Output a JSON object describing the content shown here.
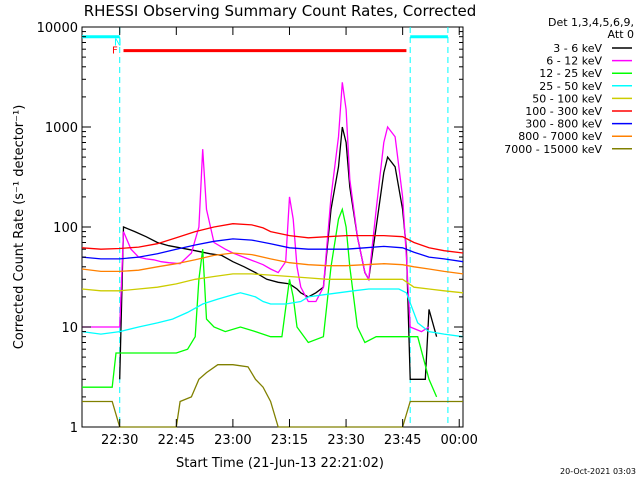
{
  "chart_data": {
    "type": "line",
    "title": "RHESSI Observing Summary Count Rates, Corrected",
    "xlabel": "Start Time (21-Jun-13 22:21:02)",
    "ylabel": "Corrected Count Rate (s⁻¹ detector⁻¹)",
    "yscale": "log",
    "ylim": [
      1,
      10000
    ],
    "xlim_minutes_after_22_00": [
      20,
      121
    ],
    "x_ticks": [
      {
        "label": "22:30",
        "minute": 30
      },
      {
        "label": "22:45",
        "minute": 45
      },
      {
        "label": "23:00",
        "minute": 60
      },
      {
        "label": "23:15",
        "minute": 75
      },
      {
        "label": "23:30",
        "minute": 90
      },
      {
        "label": "23:45",
        "minute": 105
      },
      {
        "label": "00:00",
        "minute": 120
      }
    ],
    "y_ticks": [
      {
        "label": "1",
        "value": 1
      },
      {
        "label": "10",
        "value": 10
      },
      {
        "label": "100",
        "value": 100
      },
      {
        "label": "1000",
        "value": 1000
      },
      {
        "label": "10000",
        "value": 10000
      }
    ],
    "legend_header": [
      "Det 1,3,4,5,6,9,",
      "Att 0"
    ],
    "legend_position": "right",
    "series": [
      {
        "name": "3 - 6 keV",
        "color": "#000000",
        "points": [
          [
            30,
            3
          ],
          [
            31,
            100
          ],
          [
            34,
            90
          ],
          [
            37,
            80
          ],
          [
            40,
            70
          ],
          [
            43,
            65
          ],
          [
            46,
            62
          ],
          [
            50,
            58
          ],
          [
            54,
            54
          ],
          [
            57,
            52
          ],
          [
            60,
            45
          ],
          [
            63,
            40
          ],
          [
            66,
            35
          ],
          [
            69,
            30
          ],
          [
            72,
            28
          ],
          [
            75,
            27
          ],
          [
            77,
            24
          ],
          [
            78,
            22
          ],
          [
            80,
            20
          ],
          [
            82,
            22
          ],
          [
            84,
            25
          ],
          [
            86,
            150
          ],
          [
            88,
            400
          ],
          [
            89,
            1000
          ],
          [
            90,
            700
          ],
          [
            91,
            250
          ],
          [
            93,
            80
          ],
          [
            95,
            35
          ],
          [
            96,
            30
          ],
          [
            98,
            100
          ],
          [
            100,
            350
          ],
          [
            101,
            500
          ],
          [
            103,
            400
          ],
          [
            105,
            150
          ],
          [
            106,
            60
          ],
          [
            107,
            3
          ],
          [
            111,
            3
          ],
          [
            112,
            15
          ],
          [
            114,
            8
          ]
        ]
      },
      {
        "name": "6 - 12 keV",
        "color": "#ff00ff",
        "points": [
          [
            20,
            10
          ],
          [
            27,
            10
          ],
          [
            30,
            10
          ],
          [
            31,
            90
          ],
          [
            33,
            60
          ],
          [
            35,
            50
          ],
          [
            37,
            48
          ],
          [
            39,
            47
          ],
          [
            41,
            45
          ],
          [
            43,
            44
          ],
          [
            46,
            43
          ],
          [
            49,
            55
          ],
          [
            51,
            100
          ],
          [
            52,
            600
          ],
          [
            53,
            150
          ],
          [
            55,
            70
          ],
          [
            58,
            60
          ],
          [
            60,
            55
          ],
          [
            64,
            48
          ],
          [
            66,
            45
          ],
          [
            68,
            42
          ],
          [
            70,
            38
          ],
          [
            72,
            35
          ],
          [
            74,
            45
          ],
          [
            75,
            200
          ],
          [
            76,
            120
          ],
          [
            77,
            40
          ],
          [
            78,
            25
          ],
          [
            80,
            18
          ],
          [
            82,
            18
          ],
          [
            84,
            25
          ],
          [
            86,
            200
          ],
          [
            88,
            800
          ],
          [
            89,
            2800
          ],
          [
            90,
            1500
          ],
          [
            91,
            300
          ],
          [
            93,
            80
          ],
          [
            95,
            35
          ],
          [
            96,
            30
          ],
          [
            98,
            150
          ],
          [
            100,
            700
          ],
          [
            101,
            1000
          ],
          [
            103,
            800
          ],
          [
            105,
            200
          ],
          [
            106,
            50
          ],
          [
            107,
            10
          ],
          [
            110,
            9
          ],
          [
            112,
            10
          ]
        ]
      },
      {
        "name": "12 - 25 keV",
        "color": "#00ff00",
        "points": [
          [
            20,
            2.5
          ],
          [
            28,
            2.5
          ],
          [
            29,
            5.5
          ],
          [
            35,
            5.5
          ],
          [
            40,
            5.5
          ],
          [
            45,
            5.5
          ],
          [
            48,
            6
          ],
          [
            50,
            8
          ],
          [
            51,
            30
          ],
          [
            52,
            60
          ],
          [
            53,
            12
          ],
          [
            55,
            10
          ],
          [
            58,
            9
          ],
          [
            62,
            10
          ],
          [
            66,
            9
          ],
          [
            70,
            8
          ],
          [
            73,
            8
          ],
          [
            75,
            30
          ],
          [
            76,
            20
          ],
          [
            77,
            10
          ],
          [
            80,
            7
          ],
          [
            84,
            8
          ],
          [
            86,
            40
          ],
          [
            88,
            120
          ],
          [
            89,
            150
          ],
          [
            90,
            100
          ],
          [
            91,
            40
          ],
          [
            93,
            10
          ],
          [
            95,
            7
          ],
          [
            98,
            8
          ],
          [
            102,
            8
          ],
          [
            105,
            8
          ],
          [
            107,
            8
          ],
          [
            109,
            8
          ],
          [
            112,
            3
          ],
          [
            114,
            2
          ]
        ]
      },
      {
        "name": "25 - 50 keV",
        "color": "#00ffff",
        "points": [
          [
            20,
            9
          ],
          [
            25,
            8.5
          ],
          [
            30,
            9
          ],
          [
            35,
            10
          ],
          [
            40,
            11
          ],
          [
            44,
            12
          ],
          [
            48,
            14
          ],
          [
            52,
            17
          ],
          [
            56,
            19
          ],
          [
            60,
            21
          ],
          [
            62,
            22
          ],
          [
            64,
            21
          ],
          [
            66,
            20
          ],
          [
            68,
            18
          ],
          [
            70,
            17
          ],
          [
            74,
            17
          ],
          [
            78,
            18
          ],
          [
            80,
            20
          ],
          [
            84,
            21
          ],
          [
            88,
            22
          ],
          [
            92,
            23
          ],
          [
            96,
            24
          ],
          [
            100,
            24
          ],
          [
            104,
            24
          ],
          [
            106,
            22
          ],
          [
            109,
            11
          ],
          [
            112,
            9
          ],
          [
            116,
            8.5
          ],
          [
            121,
            8
          ]
        ]
      },
      {
        "name": "50 - 100 keV",
        "color": "#cccc00",
        "points": [
          [
            20,
            24
          ],
          [
            25,
            23
          ],
          [
            30,
            23
          ],
          [
            35,
            24
          ],
          [
            40,
            25
          ],
          [
            45,
            27
          ],
          [
            50,
            30
          ],
          [
            55,
            32
          ],
          [
            60,
            34
          ],
          [
            65,
            34
          ],
          [
            70,
            33
          ],
          [
            75,
            32
          ],
          [
            80,
            31
          ],
          [
            85,
            30
          ],
          [
            90,
            30
          ],
          [
            95,
            30
          ],
          [
            100,
            30
          ],
          [
            105,
            30
          ],
          [
            108,
            25
          ],
          [
            112,
            24
          ],
          [
            116,
            23
          ],
          [
            121,
            22
          ]
        ]
      },
      {
        "name": "100 - 300 keV",
        "color": "#ff0000",
        "points": [
          [
            20,
            62
          ],
          [
            25,
            60
          ],
          [
            30,
            61
          ],
          [
            35,
            63
          ],
          [
            40,
            68
          ],
          [
            45,
            78
          ],
          [
            50,
            90
          ],
          [
            55,
            100
          ],
          [
            60,
            108
          ],
          [
            65,
            105
          ],
          [
            68,
            98
          ],
          [
            70,
            90
          ],
          [
            75,
            82
          ],
          [
            80,
            78
          ],
          [
            85,
            80
          ],
          [
            90,
            82
          ],
          [
            95,
            82
          ],
          [
            100,
            82
          ],
          [
            105,
            80
          ],
          [
            108,
            70
          ],
          [
            112,
            62
          ],
          [
            116,
            58
          ],
          [
            121,
            55
          ]
        ]
      },
      {
        "name": "300 - 800 keV",
        "color": "#0000ff",
        "points": [
          [
            20,
            50
          ],
          [
            25,
            48
          ],
          [
            30,
            48
          ],
          [
            35,
            50
          ],
          [
            40,
            54
          ],
          [
            45,
            60
          ],
          [
            50,
            66
          ],
          [
            55,
            72
          ],
          [
            60,
            76
          ],
          [
            65,
            74
          ],
          [
            70,
            68
          ],
          [
            75,
            62
          ],
          [
            80,
            60
          ],
          [
            85,
            60
          ],
          [
            90,
            60
          ],
          [
            95,
            62
          ],
          [
            100,
            64
          ],
          [
            105,
            62
          ],
          [
            108,
            56
          ],
          [
            112,
            50
          ],
          [
            116,
            48
          ],
          [
            121,
            45
          ]
        ]
      },
      {
        "name": "800 - 7000 keV",
        "color": "#ff8000",
        "points": [
          [
            20,
            38
          ],
          [
            25,
            36
          ],
          [
            30,
            36
          ],
          [
            35,
            37
          ],
          [
            40,
            40
          ],
          [
            45,
            43
          ],
          [
            50,
            47
          ],
          [
            55,
            52
          ],
          [
            60,
            55
          ],
          [
            65,
            53
          ],
          [
            70,
            48
          ],
          [
            75,
            44
          ],
          [
            80,
            42
          ],
          [
            85,
            41
          ],
          [
            90,
            41
          ],
          [
            95,
            42
          ],
          [
            100,
            43
          ],
          [
            105,
            42
          ],
          [
            108,
            40
          ],
          [
            112,
            38
          ],
          [
            116,
            36
          ],
          [
            121,
            34
          ]
        ]
      },
      {
        "name": "7000 - 15000 keV",
        "color": "#808000",
        "points": [
          [
            20,
            1.8
          ],
          [
            28,
            1.8
          ],
          [
            30,
            1
          ],
          [
            45,
            1
          ],
          [
            46,
            1.8
          ],
          [
            49,
            2
          ],
          [
            51,
            3
          ],
          [
            53,
            3.5
          ],
          [
            56,
            4.2
          ],
          [
            60,
            4.2
          ],
          [
            64,
            4
          ],
          [
            66,
            3
          ],
          [
            68,
            2.5
          ],
          [
            70,
            1.8
          ],
          [
            72,
            1
          ],
          [
            88,
            1
          ],
          [
            95,
            1
          ],
          [
            105,
            1
          ],
          [
            107,
            1.8
          ],
          [
            112,
            1.8
          ],
          [
            121,
            1.8
          ]
        ]
      }
    ],
    "annotations": [
      {
        "text": "F",
        "minute": 30,
        "color": "#ff0000"
      },
      {
        "text": "N",
        "minute": 31,
        "color": "#00ffff"
      }
    ],
    "flare_bar": {
      "start_minute": 31,
      "end_minute": 106,
      "value": 5800,
      "color": "#ff0000"
    },
    "night_bars": [
      {
        "start_minute": 20,
        "end_minute": 30,
        "value": 8000
      },
      {
        "start_minute": 107,
        "end_minute": 117,
        "value": 8000
      }
    ],
    "night_lines_minutes": [
      30,
      107,
      117
    ],
    "night_color": "#00ffff",
    "timestamp": "20-Oct-2021 03:03"
  }
}
